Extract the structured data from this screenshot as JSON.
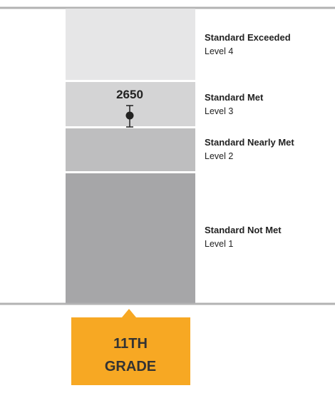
{
  "levels": [
    {
      "name": "Standard Exceeded",
      "level": "Level 4"
    },
    {
      "name": "Standard Met",
      "level": "Level 3"
    },
    {
      "name": "Standard Nearly Met",
      "level": "Level 2"
    },
    {
      "name": "Standard Not Met",
      "level": "Level 1"
    }
  ],
  "score": 2650,
  "grade": [
    "11TH",
    "GRADE"
  ]
}
